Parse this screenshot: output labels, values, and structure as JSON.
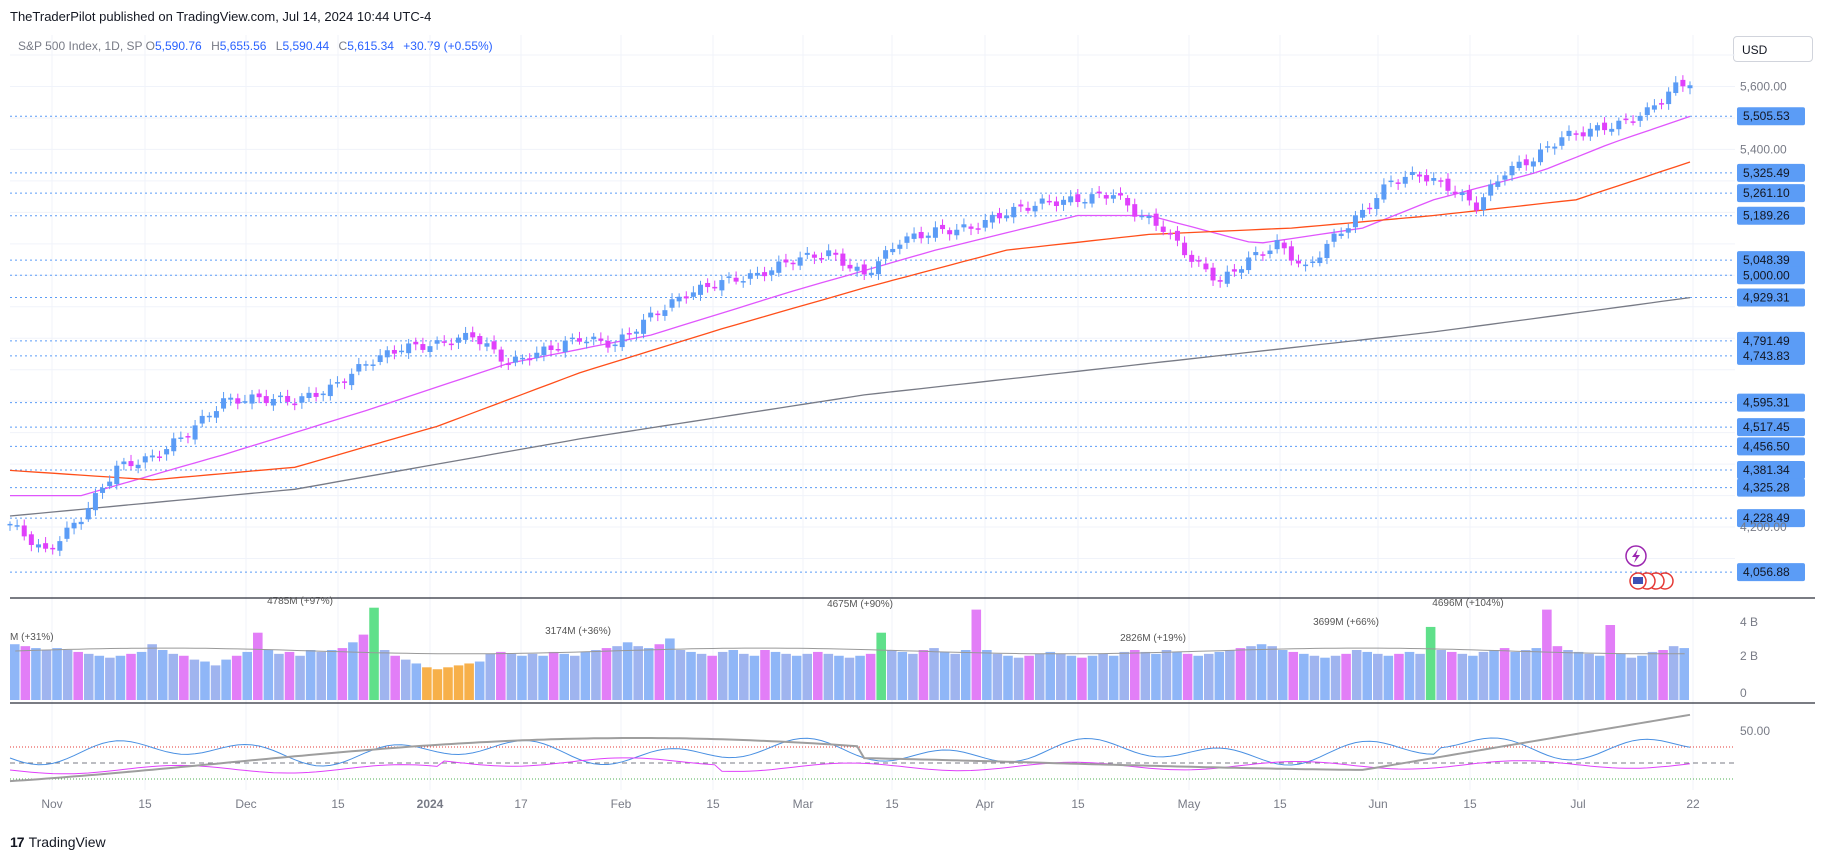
{
  "header": {
    "published": "TheTraderPilot published on TradingView.com, Jul 14, 2024 10:44 UTC-4"
  },
  "legend": {
    "symbol": "S&P 500 Index, 1D, SP",
    "o_label": "O",
    "o": "5,590.76",
    "h_label": "H",
    "h": "5,655.56",
    "l_label": "L",
    "l": "5,590.44",
    "c_label": "C",
    "c": "5,615.34",
    "change": "+30.79 (+0.55%)"
  },
  "currency": "USD",
  "footer": {
    "brand_mark": "17",
    "brand": "TradingView"
  },
  "colors": {
    "up": "#5b9cf6",
    "down": "#e040fb",
    "level_line": "#5b9cf6",
    "ma_short": "#e056fd",
    "ma_mid": "#ff4f1a",
    "ma_long": "#787b86",
    "tag_bg": "#5b9cf6"
  },
  "chart_data": {
    "type": "candlestick",
    "x_ticks": [
      "Nov",
      "15",
      "Dec",
      "15",
      "2024",
      "17",
      "Feb",
      "15",
      "Mar",
      "15",
      "Apr",
      "15",
      "May",
      "15",
      "Jun",
      "15",
      "Jul",
      "22"
    ],
    "y_ticks": [
      "5,600.00",
      "5,400.00",
      "4,200.00"
    ],
    "ylim": [
      4000,
      5700
    ],
    "price_levels": [
      "5,505.53",
      "5,325.49",
      "5,261.10",
      "5,189.26",
      "5,048.39",
      "5,000.00",
      "4,929.31",
      "4,791.49",
      "4,743.83",
      "4,595.31",
      "4,517.45",
      "4,456.50",
      "4,381.34",
      "4,325.28",
      "4,228.49",
      "4,056.88"
    ],
    "close_anchors": [
      [
        0,
        4210
      ],
      [
        5,
        4120
      ],
      [
        10,
        4230
      ],
      [
        15,
        4390
      ],
      [
        20,
        4420
      ],
      [
        25,
        4500
      ],
      [
        30,
        4600
      ],
      [
        35,
        4610
      ],
      [
        40,
        4600
      ],
      [
        45,
        4640
      ],
      [
        50,
        4720
      ],
      [
        55,
        4770
      ],
      [
        60,
        4780
      ],
      [
        65,
        4810
      ],
      [
        70,
        4720
      ],
      [
        75,
        4760
      ],
      [
        80,
        4800
      ],
      [
        85,
        4780
      ],
      [
        90,
        4870
      ],
      [
        95,
        4940
      ],
      [
        100,
        4980
      ],
      [
        105,
        5000
      ],
      [
        110,
        5050
      ],
      [
        115,
        5070
      ],
      [
        120,
        5000
      ],
      [
        125,
        5110
      ],
      [
        130,
        5140
      ],
      [
        135,
        5150
      ],
      [
        140,
        5200
      ],
      [
        145,
        5230
      ],
      [
        150,
        5240
      ],
      [
        155,
        5260
      ],
      [
        158,
        5200
      ],
      [
        162,
        5150
      ],
      [
        166,
        5050
      ],
      [
        170,
        4980
      ],
      [
        174,
        5050
      ],
      [
        178,
        5100
      ],
      [
        182,
        5020
      ],
      [
        186,
        5120
      ],
      [
        190,
        5200
      ],
      [
        194,
        5300
      ],
      [
        198,
        5320
      ],
      [
        202,
        5280
      ],
      [
        206,
        5220
      ],
      [
        210,
        5330
      ],
      [
        214,
        5370
      ],
      [
        218,
        5440
      ],
      [
        222,
        5460
      ],
      [
        226,
        5480
      ],
      [
        230,
        5520
      ],
      [
        234,
        5600
      ],
      [
        236,
        5615
      ]
    ],
    "moving_averages": [
      {
        "name": "",
        "color": "#e056fd",
        "points": [
          [
            0,
            4300
          ],
          [
            10,
            4300
          ],
          [
            30,
            4430
          ],
          [
            50,
            4570
          ],
          [
            70,
            4720
          ],
          [
            90,
            4810
          ],
          [
            110,
            4950
          ],
          [
            130,
            5080
          ],
          [
            150,
            5190
          ],
          [
            160,
            5190
          ],
          [
            175,
            5100
          ],
          [
            190,
            5150
          ],
          [
            200,
            5240
          ],
          [
            215,
            5330
          ],
          [
            225,
            5420
          ],
          [
            236,
            5505
          ]
        ]
      },
      {
        "name": "",
        "color": "#ff4f1a",
        "points": [
          [
            0,
            4380
          ],
          [
            20,
            4350
          ],
          [
            40,
            4390
          ],
          [
            60,
            4520
          ],
          [
            80,
            4690
          ],
          [
            100,
            4830
          ],
          [
            120,
            4960
          ],
          [
            140,
            5080
          ],
          [
            160,
            5130
          ],
          [
            180,
            5150
          ],
          [
            200,
            5190
          ],
          [
            220,
            5240
          ],
          [
            236,
            5360
          ]
        ]
      },
      {
        "name": "",
        "color": "#787b86",
        "points": [
          [
            0,
            4235
          ],
          [
            40,
            4320
          ],
          [
            80,
            4480
          ],
          [
            120,
            4620
          ],
          [
            160,
            4720
          ],
          [
            200,
            4820
          ],
          [
            236,
            4929
          ]
        ]
      }
    ],
    "volume": {
      "ylabels": [
        "4 B",
        "2 B",
        "0"
      ],
      "annotations": [
        "M (+31%)",
        "4785M (+97%)",
        "3174M (+36%)",
        "4675M (+90%)",
        "2826M (+19%)",
        "3699M (+66%)",
        "4696M (+104%)"
      ],
      "values_bn": [
        2.9,
        2.8,
        2.7,
        2.6,
        2.7,
        2.6,
        2.5,
        2.4,
        2.3,
        2.2,
        2.3,
        2.4,
        2.5,
        2.9,
        2.6,
        2.4,
        2.3,
        2.1,
        2.0,
        1.8,
        2.1,
        2.3,
        2.5,
        3.5,
        2.6,
        2.4,
        2.5,
        2.3,
        2.6,
        2.5,
        2.6,
        2.7,
        3.0,
        3.4,
        4.8,
        2.6,
        2.3,
        2.1,
        1.9,
        1.7,
        1.6,
        1.7,
        1.8,
        1.9,
        2.0,
        2.4,
        2.5,
        2.4,
        2.3,
        2.4,
        2.3,
        2.5,
        2.4,
        2.3,
        2.5,
        2.6,
        2.7,
        2.8,
        3.0,
        2.8,
        2.7,
        2.9,
        3.2,
        2.6,
        2.5,
        2.4,
        2.3,
        2.5,
        2.6,
        2.4,
        2.3,
        2.6,
        2.5,
        2.4,
        2.3,
        2.4,
        2.5,
        2.4,
        2.3,
        2.2,
        2.3,
        2.4,
        3.5,
        2.6,
        2.5,
        2.4,
        2.6,
        2.7,
        2.5,
        2.4,
        2.6,
        4.7,
        2.6,
        2.4,
        2.3,
        2.2,
        2.3,
        2.4,
        2.5,
        2.4,
        2.3,
        2.2,
        2.3,
        2.4,
        2.3,
        2.5,
        2.6,
        2.5,
        2.4,
        2.6,
        2.5,
        2.4,
        2.3,
        2.4,
        2.5,
        2.6,
        2.7,
        2.8,
        2.9,
        2.8,
        2.6,
        2.5,
        2.4,
        2.3,
        2.2,
        2.3,
        2.4,
        2.6,
        2.5,
        2.4,
        2.3,
        2.4,
        2.5,
        2.4,
        3.8,
        2.6,
        2.5,
        2.4,
        2.3,
        2.5,
        2.6,
        2.7,
        2.5,
        2.6,
        2.7,
        4.7,
        2.8,
        2.6,
        2.5,
        2.4,
        2.3,
        3.9,
        2.4,
        2.2,
        2.3,
        2.5,
        2.6,
        2.8,
        2.7
      ]
    },
    "oscillator": {
      "ylabels": [
        "50.00"
      ]
    }
  }
}
